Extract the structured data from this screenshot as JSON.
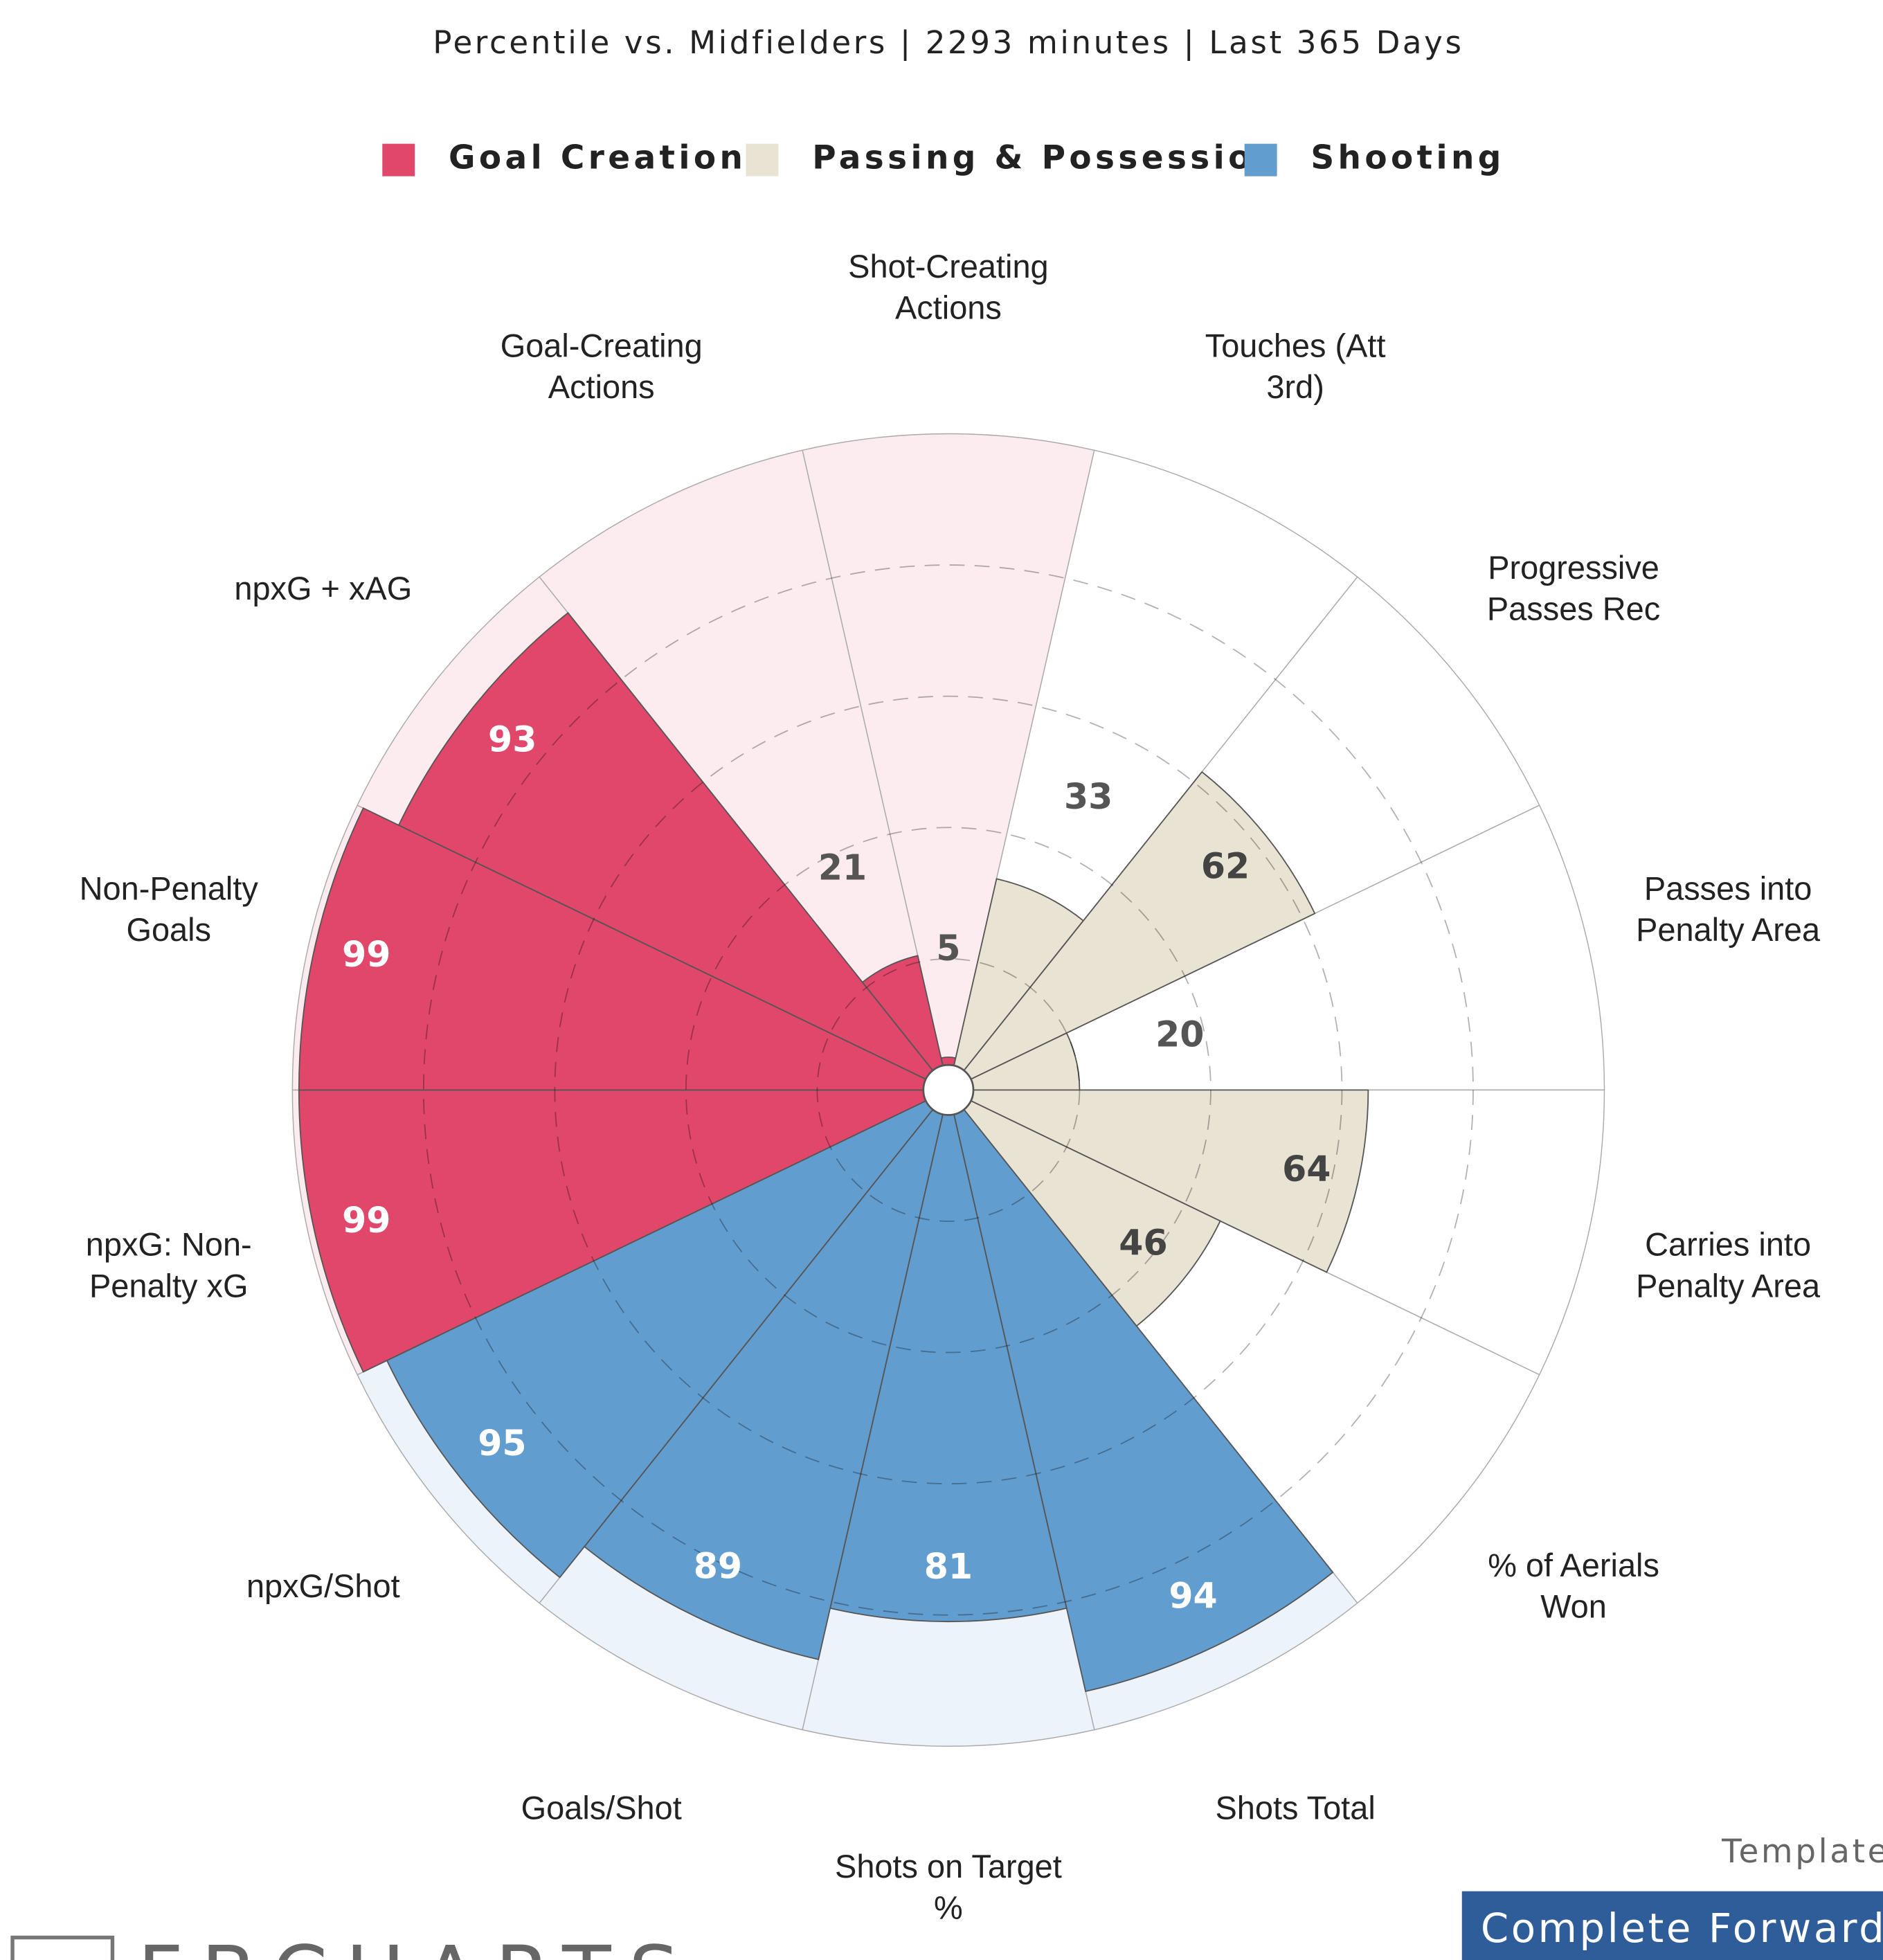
{
  "chart_data": {
    "type": "pizza",
    "title": "Percentile vs. Midfielders | 2293 minutes | Last 365 Days",
    "series": [
      {
        "name": "Goal Creation",
        "color": "#e0476b",
        "background": "#fdecef"
      },
      {
        "name": "Passing & Possession",
        "color": "#e8e3d3",
        "background": "#ffffff"
      },
      {
        "name": "Shooting",
        "color": "#629dcf",
        "background": "#edf3fa"
      }
    ],
    "categories": [
      "Shot-Creating\nActions",
      "Touches (Att\n3rd)",
      "Progressive\nPasses Rec",
      "Passes into\nPenalty Area",
      "Carries into\nPenalty Area",
      "% of Aerials\nWon",
      "Shots Total",
      "Shots on Target\n%",
      "Goals/Shot",
      "npxG/Shot",
      "npxG: Non-\nPenalty xG",
      "Non-Penalty\nGoals",
      "npxG + xAG",
      "Goal-Creating\nActions"
    ],
    "values": [
      5,
      33,
      62,
      20,
      64,
      46,
      94,
      81,
      89,
      95,
      99,
      99,
      93,
      21
    ],
    "groups": [
      0,
      1,
      1,
      1,
      1,
      1,
      2,
      2,
      2,
      2,
      0,
      0,
      0,
      0
    ],
    "rlim": [
      0,
      100
    ],
    "rticks": [
      20,
      40,
      60,
      80
    ]
  },
  "footer": {
    "template_label": "Template",
    "template_name": "Complete Forward",
    "brand": "FBCHARTS"
  }
}
